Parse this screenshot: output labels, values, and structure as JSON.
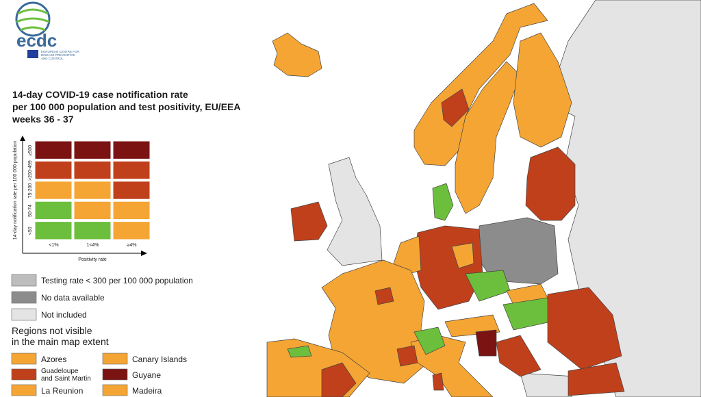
{
  "logo": {
    "name": "ecdc",
    "subtitle": [
      "EUROPEAN CENTRE FOR",
      "DISEASE PREVENTION",
      "AND CONTROL"
    ]
  },
  "title": [
    "14-day COVID-19 case notification rate",
    "per 100 000 population and test positivity, EU/EEA",
    "weeks 36 - 37"
  ],
  "matrix": {
    "y_label": "14-day notification rate per 100 000 population",
    "x_label": "Positivity rate",
    "rows": [
      "≥500",
      ">200-499",
      "75-200",
      "50-74",
      "<50"
    ],
    "columns": [
      "<1%",
      "1<4%",
      "≥4%"
    ],
    "cells": [
      [
        "#7b1313",
        "#7b1313",
        "#7b1313"
      ],
      [
        "#c0401b",
        "#c0401b",
        "#c0401b"
      ],
      [
        "#f5a533",
        "#f5a533",
        "#c0401b"
      ],
      [
        "#6cbf3c",
        "#f5a533",
        "#f5a533"
      ],
      [
        "#6cbf3c",
        "#6cbf3c",
        "#f5a533"
      ]
    ]
  },
  "legend": [
    {
      "label": "Testing rate < 300 per 100 000 population",
      "color": "#bdbdbd"
    },
    {
      "label": "No data available",
      "color": "#8c8c8c"
    },
    {
      "label": "Not included",
      "color": "#e4e4e4"
    }
  ],
  "regions_heading": [
    "Regions not visible",
    "in the main map extent"
  ],
  "regions": [
    {
      "label": "Azores",
      "color": "#f5a533"
    },
    {
      "label": "Canary Islands",
      "color": "#f5a533"
    },
    {
      "label": "Guadeloupe and Saint Martin",
      "lines": [
        "Guadeloupe",
        "and Saint Martin"
      ],
      "color": "#c0401b"
    },
    {
      "label": "Guyane",
      "color": "#7b1313"
    },
    {
      "label": "La Reunion",
      "color": "#f5a533"
    },
    {
      "label": "Madeira",
      "color": "#f5a533"
    }
  ]
}
